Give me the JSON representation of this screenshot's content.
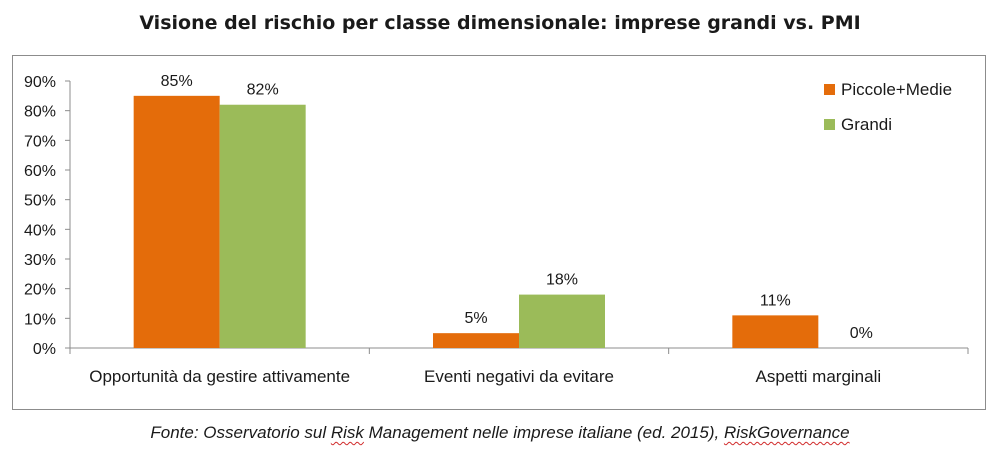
{
  "chart_data": {
    "type": "bar",
    "title": "Visione del rischio per classe dimensionale: imprese grandi vs. PMI",
    "categories": [
      "Opportunità da gestire attivamente",
      "Eventi negativi da evitare",
      "Aspetti marginali"
    ],
    "series": [
      {
        "name": "Piccole+Medie",
        "color": "#e46c0a",
        "values": [
          85,
          5,
          11
        ],
        "labels": [
          "85%",
          "5%",
          "11%"
        ]
      },
      {
        "name": "Grandi",
        "color": "#9bbb59",
        "values": [
          82,
          18,
          0
        ],
        "labels": [
          "82%",
          "18%",
          "0%"
        ]
      }
    ],
    "ylim": [
      0,
      90
    ],
    "yticks": [
      "0%",
      "10%",
      "20%",
      "30%",
      "40%",
      "50%",
      "60%",
      "70%",
      "80%",
      "90%"
    ],
    "xlabel": "",
    "ylabel": "",
    "grid": false,
    "legend_position": "top-right"
  },
  "source": {
    "prefix": "Fonte: Osservatorio sul ",
    "term1": "Risk",
    "middle": " Management  nelle imprese italiane (ed. 2015), ",
    "term2": "RiskGovernance"
  }
}
